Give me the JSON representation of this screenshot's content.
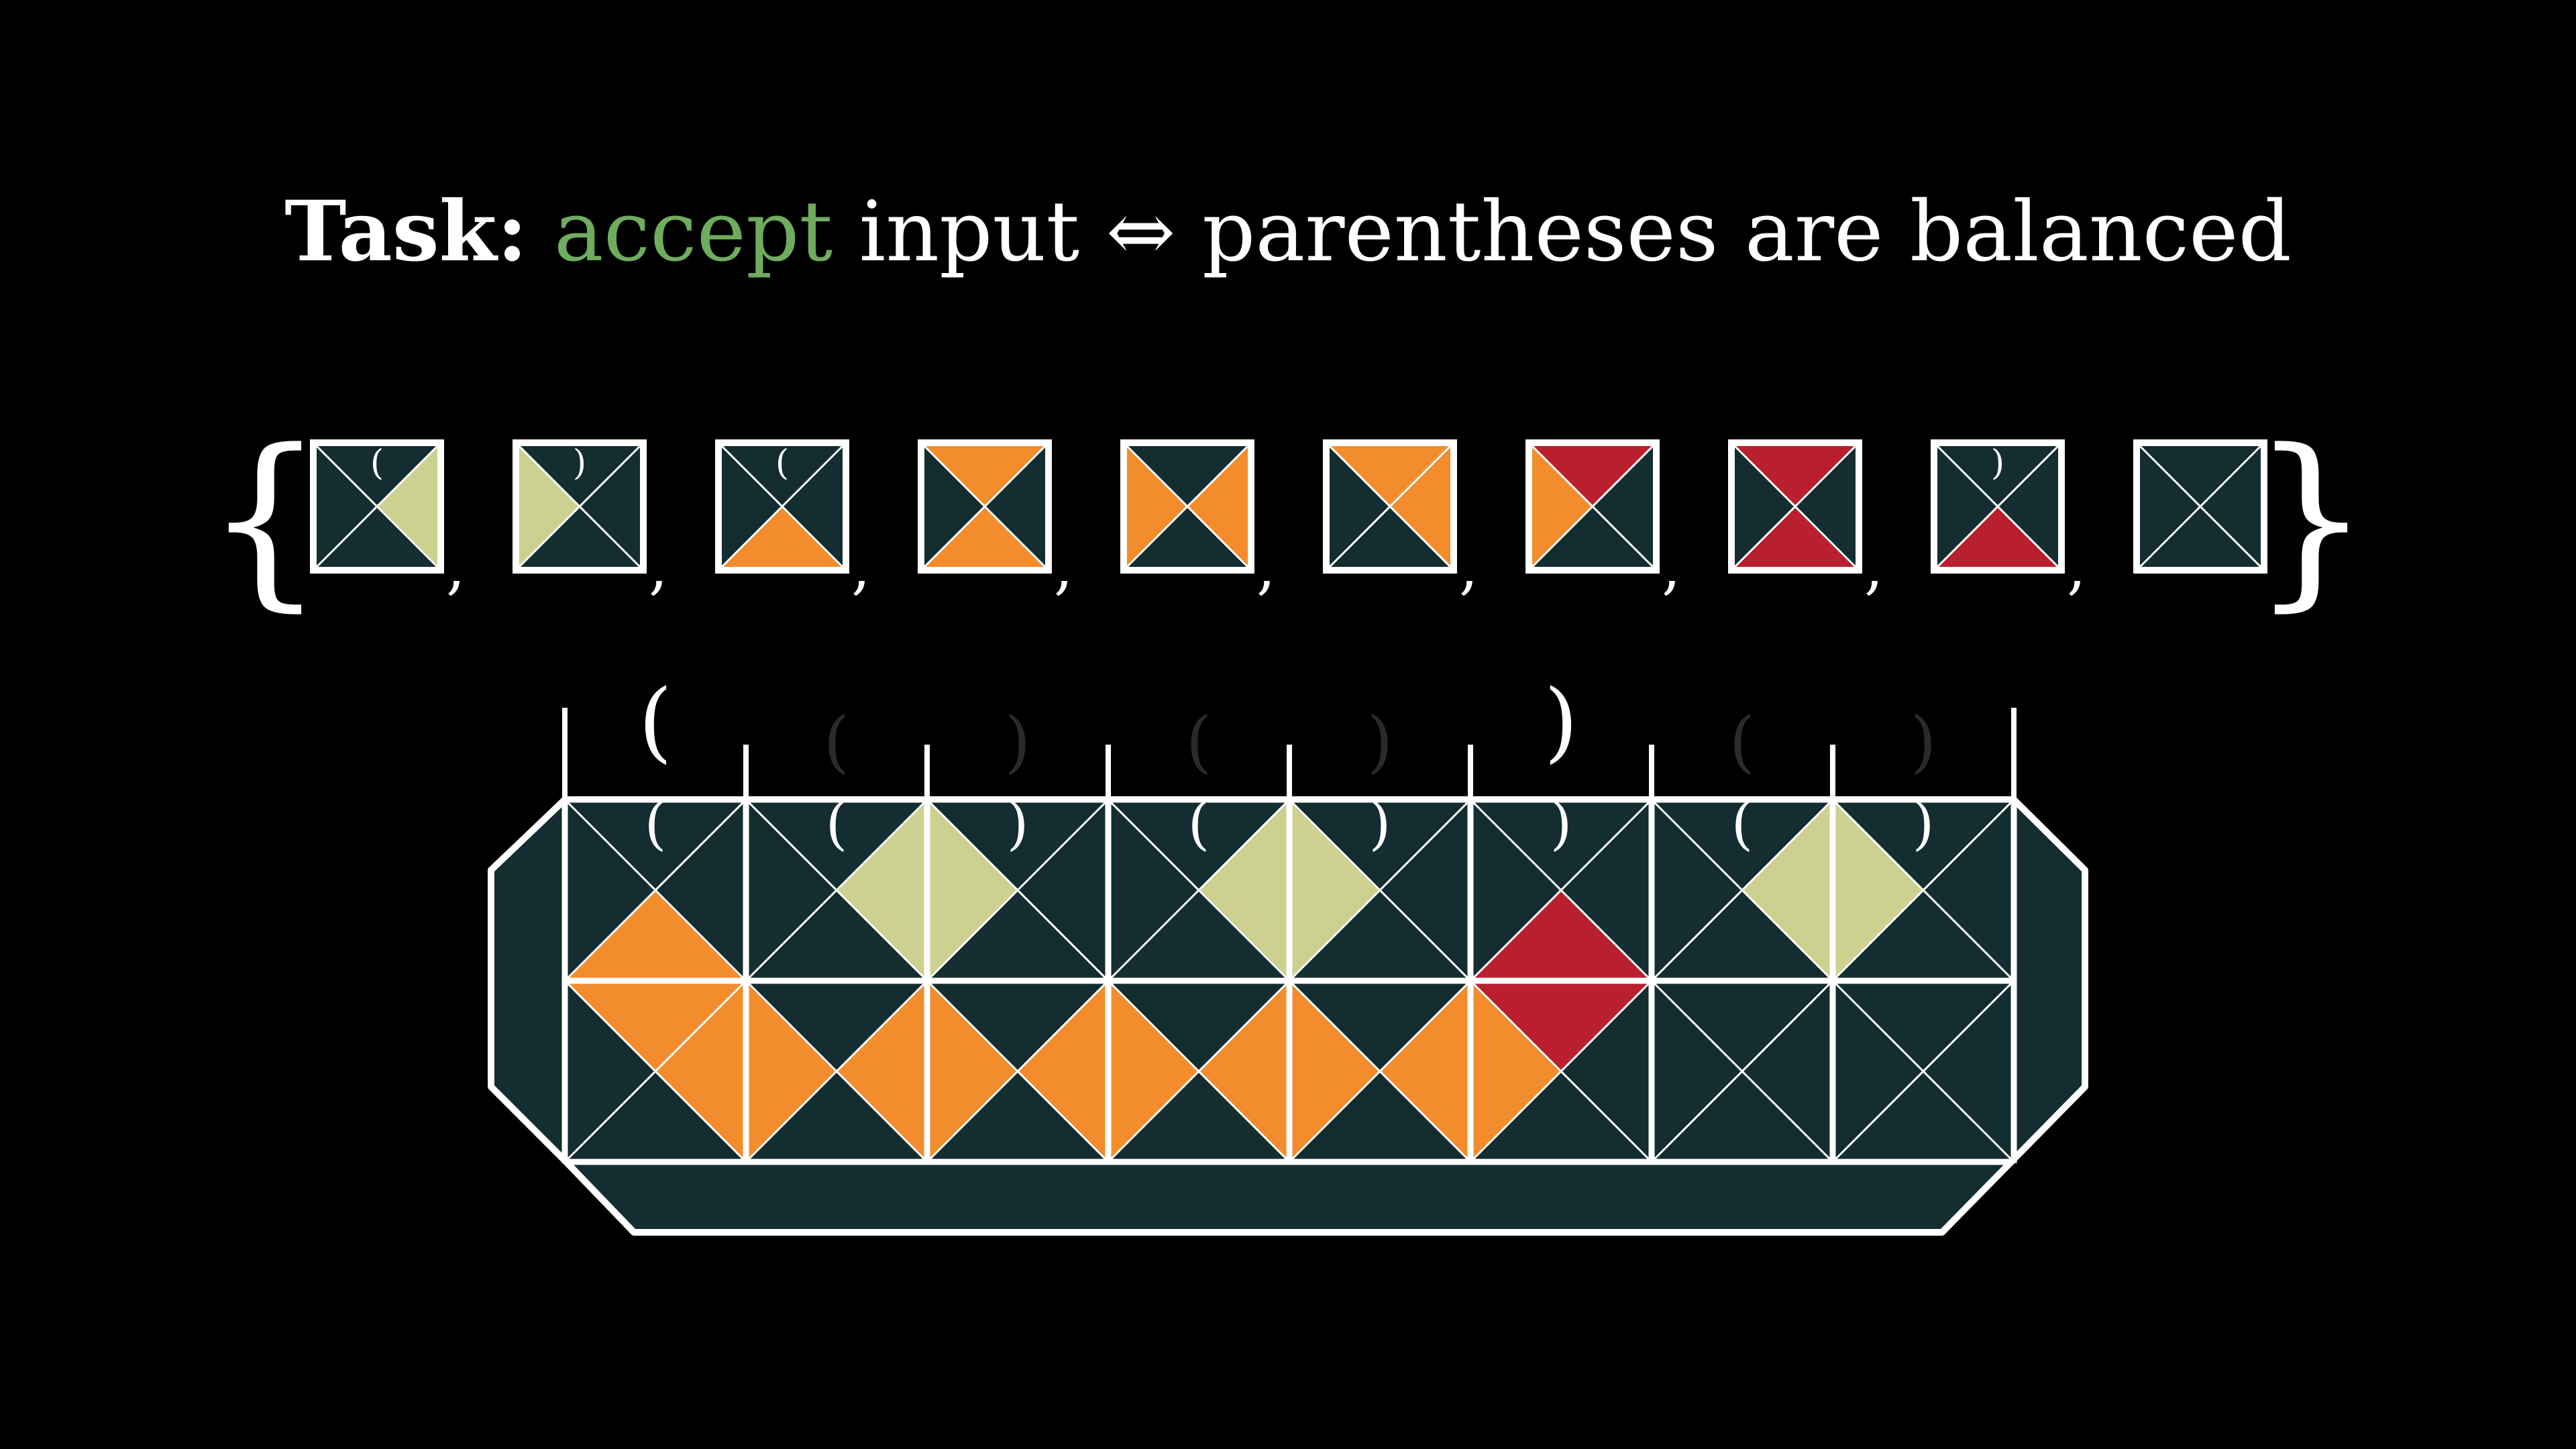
{
  "title": {
    "task_label": "Task:",
    "accept_word": "accept",
    "rest": " input ⇔ parentheses are balanced"
  },
  "colors": {
    "background": "#000000",
    "dark": "#132d30",
    "yellow": "#cdd190",
    "orange": "#f28c2c",
    "red": "#b91f2e",
    "white": "#ffffff",
    "accept_green": "#6fac5e"
  },
  "tile_set": {
    "open_brace": "{",
    "close_brace": "}",
    "separator": ",",
    "tiles": [
      {
        "top": "dark",
        "right": "yellow",
        "bottom": "dark",
        "left": "dark",
        "label": "("
      },
      {
        "top": "dark",
        "right": "dark",
        "bottom": "dark",
        "left": "yellow",
        "label": ")"
      },
      {
        "top": "dark",
        "right": "dark",
        "bottom": "orange",
        "left": "dark",
        "label": "("
      },
      {
        "top": "orange",
        "right": "dark",
        "bottom": "orange",
        "left": "dark",
        "label": ""
      },
      {
        "top": "dark",
        "right": "orange",
        "bottom": "dark",
        "left": "orange",
        "label": ""
      },
      {
        "top": "orange",
        "right": "orange",
        "bottom": "dark",
        "left": "dark",
        "label": ""
      },
      {
        "top": "red",
        "right": "dark",
        "bottom": "dark",
        "left": "orange",
        "label": ""
      },
      {
        "top": "red",
        "right": "dark",
        "bottom": "red",
        "left": "dark",
        "label": ""
      },
      {
        "top": "dark",
        "right": "dark",
        "bottom": "red",
        "left": "dark",
        "label": ")"
      },
      {
        "top": "dark",
        "right": "dark",
        "bottom": "dark",
        "left": "dark",
        "label": ""
      }
    ]
  },
  "tiling": {
    "input_symbols": [
      {
        "char": "(",
        "style": "bright"
      },
      {
        "char": "(",
        "style": "dim"
      },
      {
        "char": ")",
        "style": "dim"
      },
      {
        "char": "(",
        "style": "dim"
      },
      {
        "char": ")",
        "style": "dim"
      },
      {
        "char": ")",
        "style": "bright"
      },
      {
        "char": "(",
        "style": "dim"
      },
      {
        "char": ")",
        "style": "dim"
      }
    ],
    "rows": [
      [
        {
          "top": "dark",
          "right": "dark",
          "bottom": "orange",
          "left": "dark",
          "label": "("
        },
        {
          "top": "dark",
          "right": "yellow",
          "bottom": "dark",
          "left": "dark",
          "label": "("
        },
        {
          "top": "dark",
          "right": "dark",
          "bottom": "dark",
          "left": "yellow",
          "label": ")"
        },
        {
          "top": "dark",
          "right": "yellow",
          "bottom": "dark",
          "left": "dark",
          "label": "("
        },
        {
          "top": "dark",
          "right": "dark",
          "bottom": "dark",
          "left": "yellow",
          "label": ")"
        },
        {
          "top": "dark",
          "right": "dark",
          "bottom": "red",
          "left": "dark",
          "label": ")"
        },
        {
          "top": "dark",
          "right": "yellow",
          "bottom": "dark",
          "left": "dark",
          "label": "("
        },
        {
          "top": "dark",
          "right": "dark",
          "bottom": "dark",
          "left": "yellow",
          "label": ")"
        }
      ],
      [
        {
          "top": "orange",
          "right": "orange",
          "bottom": "dark",
          "left": "dark",
          "label": ""
        },
        {
          "top": "dark",
          "right": "orange",
          "bottom": "dark",
          "left": "orange",
          "label": ""
        },
        {
          "top": "dark",
          "right": "orange",
          "bottom": "dark",
          "left": "orange",
          "label": ""
        },
        {
          "top": "dark",
          "right": "orange",
          "bottom": "dark",
          "left": "orange",
          "label": ""
        },
        {
          "top": "dark",
          "right": "orange",
          "bottom": "dark",
          "left": "orange",
          "label": ""
        },
        {
          "top": "red",
          "right": "dark",
          "bottom": "dark",
          "left": "orange",
          "label": ""
        },
        {
          "top": "dark",
          "right": "dark",
          "bottom": "dark",
          "left": "dark",
          "label": ""
        },
        {
          "top": "dark",
          "right": "dark",
          "bottom": "dark",
          "left": "dark",
          "label": ""
        }
      ]
    ]
  }
}
